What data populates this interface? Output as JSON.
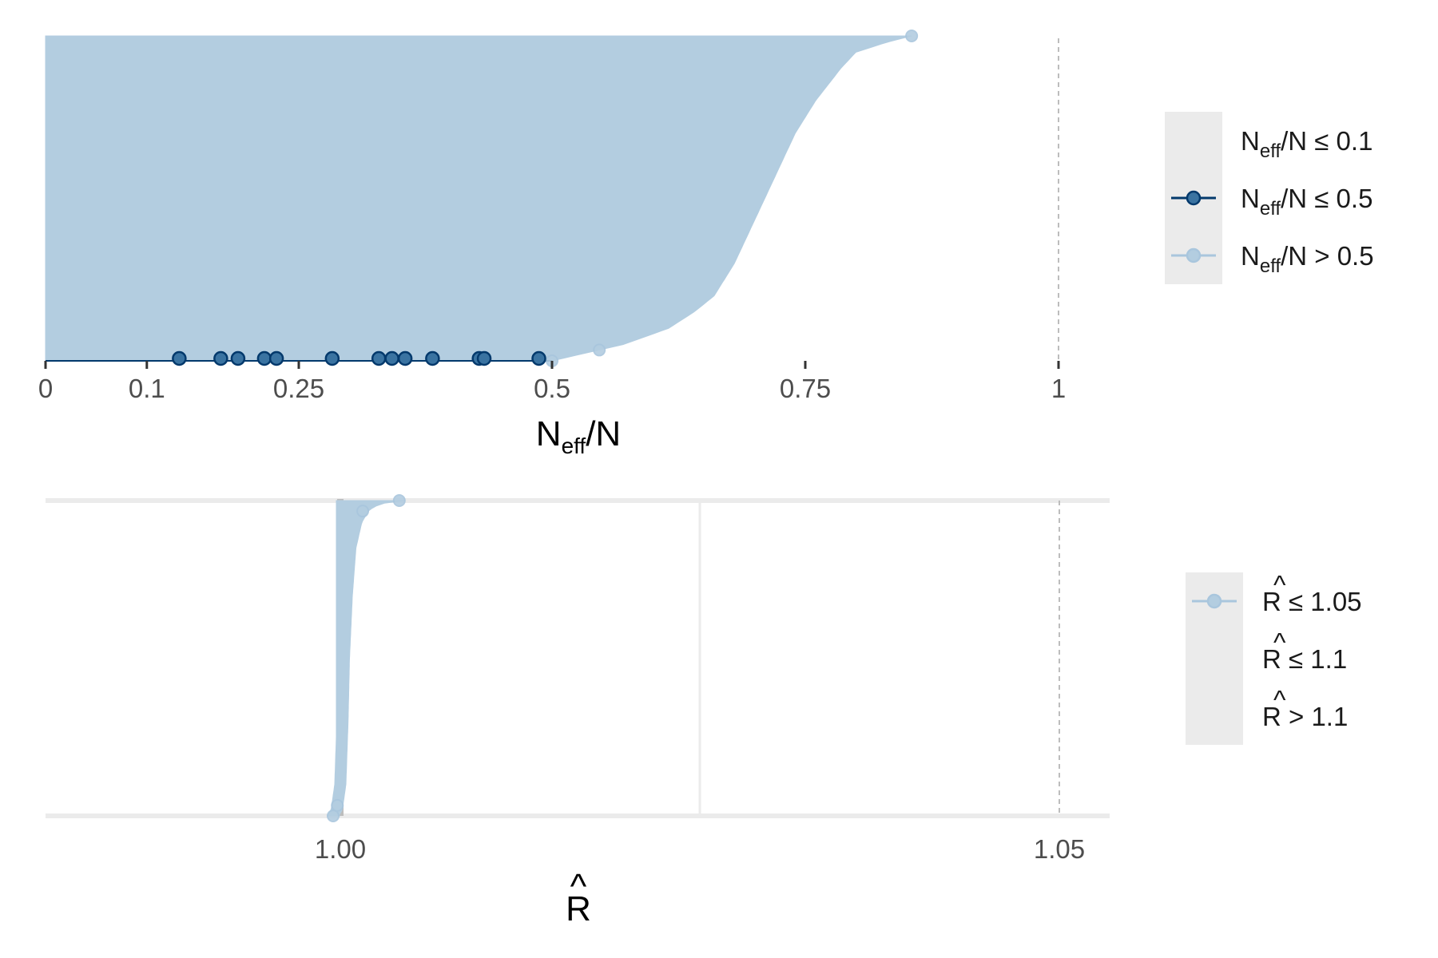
{
  "colors": {
    "light_blue": "#b3cde0",
    "light_blue_line": "#a9c6dd",
    "dark_blue": "#3a73a1",
    "dark_blue_line": "#03396c",
    "legend_bg": "#ebebeb",
    "grid": "#ebebeb",
    "ref_line": "#bdbdbd",
    "rhat_bar": "#bdbdbd"
  },
  "chart_data": [
    {
      "type": "scatter",
      "panel": "neff_ratio",
      "xlabel": {
        "main": "N",
        "sub": "eff",
        "tail": "/N"
      },
      "xlim": [
        0,
        1.05
      ],
      "x_ticks": [
        {
          "value": 0,
          "label": "0"
        },
        {
          "value": 0.1,
          "label": "0.1"
        },
        {
          "value": 0.25,
          "label": "0.25"
        },
        {
          "value": 0.5,
          "label": "0.5"
        },
        {
          "value": 0.75,
          "label": "0.75"
        },
        {
          "value": 1,
          "label": "1"
        }
      ],
      "ref_lines_x": [
        0.1,
        0.5,
        1
      ],
      "grid": false,
      "legend_position": "right",
      "legend": [
        {
          "main": "N",
          "sub": "eff",
          "text": "/N ≤ 0.1",
          "color": "#ebebeb",
          "shown": false
        },
        {
          "main": "N",
          "sub": "eff",
          "text": "/N ≤ 0.5",
          "color": "#3a73a1",
          "shown": true
        },
        {
          "main": "N",
          "sub": "eff",
          "text": "/N > 0.5",
          "color": "#b3cde0",
          "shown": true
        }
      ],
      "series": [
        {
          "group": "neff <= 0.5",
          "x": [
            0.132,
            0.173,
            0.19,
            0.216,
            0.228,
            0.283,
            0.329,
            0.342,
            0.355,
            0.382,
            0.428,
            0.433,
            0.487
          ]
        },
        {
          "group": "neff > 0.5",
          "x_range": [
            0.5,
            0.855
          ],
          "distribution_profile": [
            [
              0.0,
              0.5
            ],
            [
              0.05,
              0.57
            ],
            [
              0.1,
              0.615
            ],
            [
              0.15,
              0.64
            ],
            [
              0.2,
              0.66
            ],
            [
              0.3,
              0.68
            ],
            [
              0.4,
              0.695
            ],
            [
              0.5,
              0.71
            ],
            [
              0.6,
              0.725
            ],
            [
              0.7,
              0.74
            ],
            [
              0.8,
              0.76
            ],
            [
              0.9,
              0.785
            ],
            [
              0.95,
              0.8
            ],
            [
              0.98,
              0.83
            ],
            [
              1.0,
              0.855
            ]
          ]
        }
      ]
    },
    {
      "type": "scatter",
      "panel": "rhat",
      "xlabel": {
        "main": "R",
        "hat": "^"
      },
      "xlim": [
        0.9795,
        1.0535
      ],
      "x_ticks": [
        {
          "value": 1.0,
          "label": "1.00"
        },
        {
          "value": 1.05,
          "label": "1.05"
        }
      ],
      "minor_grid_x": [
        1.025
      ],
      "ref_lines_x": [
        1.05
      ],
      "grid": true,
      "legend_position": "right",
      "legend": [
        {
          "main": "R",
          "text": " ≤ 1.05",
          "color": "#b3cde0",
          "shown": true
        },
        {
          "main": "R",
          "text": " ≤ 1.1",
          "color": "#ebebeb",
          "shown": false
        },
        {
          "main": "R",
          "text": " > 1.1",
          "color": "#ebebeb",
          "shown": false
        }
      ],
      "series": [
        {
          "group": "rhat <= 1.05",
          "x_range": [
            0.9995,
            1.0041
          ],
          "distribution_profile": [
            [
              0.0,
              0.9995
            ],
            [
              0.02,
              0.99975
            ],
            [
              0.1,
              1.0
            ],
            [
              0.3,
              1.00015
            ],
            [
              0.5,
              1.00025
            ],
            [
              0.7,
              1.00045
            ],
            [
              0.85,
              1.0007
            ],
            [
              0.93,
              1.0011
            ],
            [
              0.97,
              1.0016
            ],
            [
              0.99,
              1.0024
            ],
            [
              1.0,
              1.0041
            ]
          ]
        }
      ]
    }
  ]
}
